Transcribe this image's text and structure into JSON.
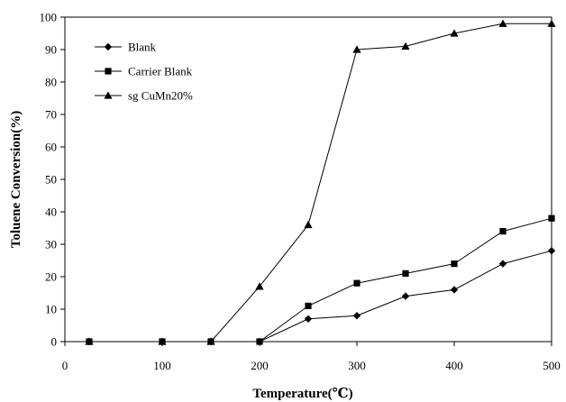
{
  "chart_data": {
    "type": "line",
    "title": "",
    "xlabel": "Temperature(℃)",
    "ylabel": "Toluene Conversion(%)",
    "xlim": [
      0,
      500
    ],
    "ylim": [
      0,
      100
    ],
    "xticks": [
      0,
      100,
      200,
      300,
      400,
      500
    ],
    "yticks": [
      0,
      10,
      20,
      30,
      40,
      50,
      60,
      70,
      80,
      90,
      100
    ],
    "grid": false,
    "legend_position": "top-left",
    "series": [
      {
        "name": "Blank",
        "marker": "diamond",
        "x": [
          25,
          100,
          150,
          200,
          250,
          300,
          350,
          400,
          450,
          500
        ],
        "y": [
          0,
          0,
          0,
          0,
          7,
          8,
          14,
          16,
          24,
          28
        ]
      },
      {
        "name": "Carrier Blank",
        "marker": "square",
        "x": [
          25,
          100,
          150,
          200,
          250,
          300,
          350,
          400,
          450,
          500
        ],
        "y": [
          0,
          0,
          0,
          0,
          11,
          18,
          21,
          24,
          34,
          38
        ]
      },
      {
        "name": "sg CuMn20%",
        "marker": "triangle",
        "x": [
          25,
          100,
          150,
          200,
          250,
          300,
          350,
          400,
          450,
          500
        ],
        "y": [
          0,
          0,
          0,
          17,
          36,
          90,
          91,
          95,
          98,
          98
        ]
      }
    ]
  }
}
